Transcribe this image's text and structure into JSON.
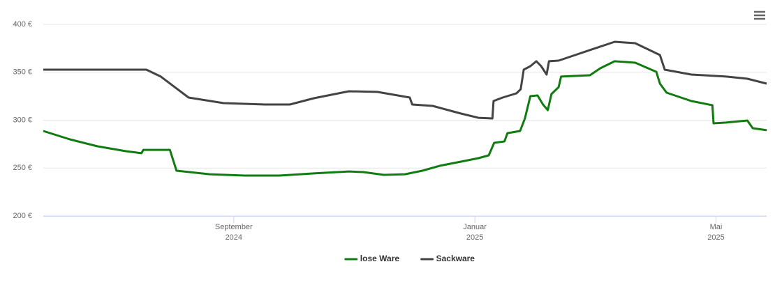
{
  "chart_data": {
    "type": "line",
    "xlim": [
      5.84,
      17.84
    ],
    "xticks": [
      {
        "value": 9,
        "label": "September",
        "sublabel": "2024"
      },
      {
        "value": 13,
        "label": "Januar",
        "sublabel": "2025"
      },
      {
        "value": 17,
        "label": "Mai",
        "sublabel": "2025"
      }
    ],
    "ylim": [
      200,
      400
    ],
    "yticks": [
      {
        "value": 200,
        "label": "200 €"
      },
      {
        "value": 250,
        "label": "250 €"
      },
      {
        "value": 300,
        "label": "300 €"
      },
      {
        "value": 350,
        "label": "350 €"
      },
      {
        "value": 400,
        "label": "400 €"
      }
    ],
    "grid": true,
    "legend": "bottom",
    "series": [
      {
        "name": "lose Ware",
        "color": "#107c10",
        "x": [
          5.84,
          6.28,
          6.74,
          7.21,
          7.47,
          7.5,
          7.94,
          8.05,
          8.6,
          9.18,
          9.76,
          10.33,
          10.91,
          11.15,
          11.49,
          11.84,
          12.13,
          12.42,
          12.77,
          13.06,
          13.23,
          13.32,
          13.49,
          13.54,
          13.75,
          13.83,
          13.92,
          14.04,
          14.13,
          14.21,
          14.27,
          14.39,
          14.43,
          14.91,
          15.08,
          15.32,
          15.66,
          16.01,
          16.07,
          16.18,
          16.59,
          16.94,
          16.96,
          17.17,
          17.52,
          17.61,
          17.84
        ],
        "values": [
          288.7,
          280.0,
          272.7,
          267.6,
          265.5,
          269.0,
          269.0,
          247.3,
          243.6,
          242.2,
          242.2,
          244.4,
          246.5,
          245.8,
          242.9,
          243.6,
          247.3,
          252.4,
          256.7,
          260.4,
          263.3,
          276.4,
          277.8,
          286.5,
          288.7,
          301.8,
          325.1,
          325.8,
          316.4,
          310.5,
          327.3,
          334.5,
          345.5,
          346.9,
          354.2,
          361.5,
          360.0,
          350.5,
          338.2,
          328.7,
          320.0,
          315.6,
          296.7,
          297.5,
          299.6,
          291.6,
          289.5
        ]
      },
      {
        "name": "Sackware",
        "color": "#434343",
        "x": [
          5.84,
          7.55,
          7.79,
          8.25,
          8.83,
          9.52,
          9.93,
          10.33,
          10.91,
          11.38,
          11.92,
          11.96,
          12.3,
          12.77,
          13.06,
          13.29,
          13.31,
          13.46,
          13.69,
          13.76,
          13.81,
          13.92,
          14.02,
          14.1,
          14.19,
          14.23,
          14.39,
          14.97,
          15.32,
          15.66,
          16.07,
          16.15,
          16.59,
          17.17,
          17.52,
          17.84
        ],
        "values": [
          352.7,
          352.7,
          345.5,
          323.6,
          317.8,
          316.4,
          316.4,
          322.9,
          330.2,
          329.5,
          323.6,
          316.4,
          314.9,
          306.9,
          302.5,
          301.8,
          320.0,
          323.6,
          328.0,
          332.4,
          352.7,
          356.4,
          361.5,
          356.4,
          347.6,
          361.5,
          362.2,
          374.5,
          381.8,
          380.4,
          368.0,
          352.7,
          347.6,
          345.5,
          343.3,
          338.2
        ]
      }
    ]
  }
}
